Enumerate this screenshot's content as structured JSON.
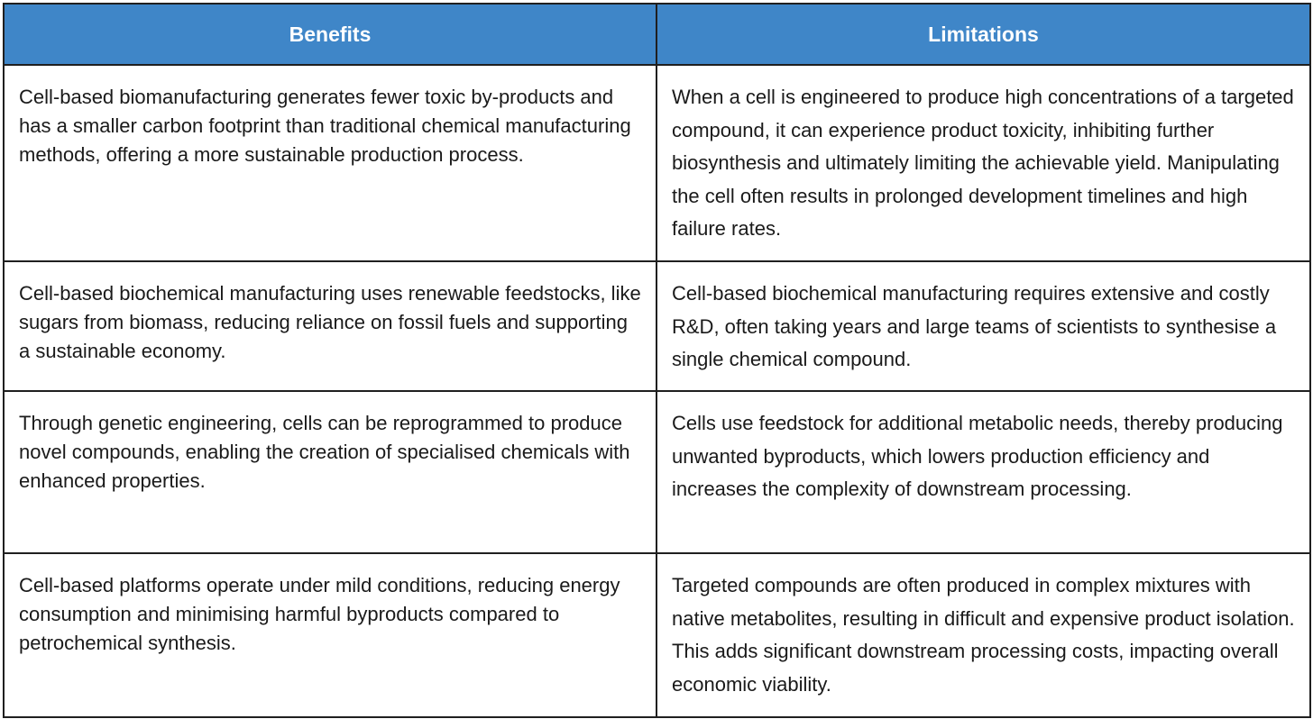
{
  "table": {
    "headers": {
      "benefits": "Benefits",
      "limitations": "Limitations"
    },
    "header_color": "#3f86c8",
    "rows": [
      {
        "benefit": "Cell-based biomanufacturing generates fewer toxic by-products and has a smaller carbon footprint than traditional chemical manufacturing methods, offering a more sustainable production process.",
        "limitation": "When a cell is engineered to produce high concentrations of a targeted compound, it can experience product toxicity, inhibiting further biosynthesis and ultimately limiting the achievable yield. Manipulating the cell often results in prolonged development timelines and high failure rates."
      },
      {
        "benefit": "Cell-based biochemical manufacturing uses renewable feedstocks, like sugars from biomass, reducing reliance on fossil fuels and supporting a sustainable economy.",
        "limitation": "Cell-based biochemical manufacturing requires extensive and costly R&D, often taking years and large teams of scientists to synthesise a single chemical compound."
      },
      {
        "benefit": "Through genetic engineering, cells can be reprogrammed to produce novel compounds, enabling the creation of specialised chemicals with enhanced properties.",
        "limitation": "Cells use feedstock for additional metabolic needs, thereby producing unwanted byproducts, which lowers production efficiency and increases the complexity of downstream processing."
      },
      {
        "benefit": "Cell-based platforms operate under mild conditions, reducing energy consumption and minimising harmful byproducts compared to petrochemical synthesis.",
        "limitation": "Targeted compounds are often produced in complex mixtures with native metabolites, resulting in difficult and expensive product isolation. This adds significant downstream processing costs, impacting overall economic viability."
      }
    ]
  }
}
